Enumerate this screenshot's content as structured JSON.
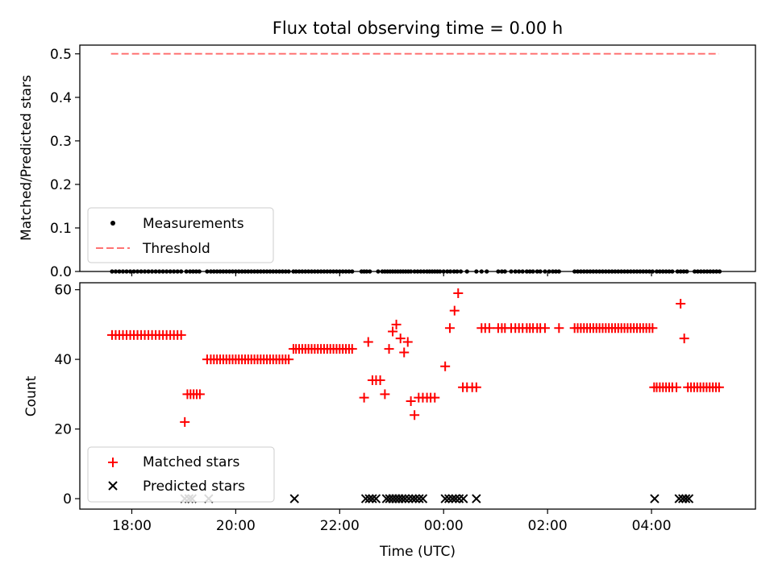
{
  "chart_data": [
    {
      "type": "scatter",
      "title": "Flux total observing time = 0.00 h",
      "ylabel": "Matched/Predicted stars",
      "xlabel": "",
      "xlim": [
        17.0,
        30.0
      ],
      "ylim": [
        0.0,
        0.52
      ],
      "yticks": [
        0.0,
        0.1,
        0.2,
        0.3,
        0.4,
        0.5
      ],
      "ytick_labels": [
        "0.0",
        "0.1",
        "0.2",
        "0.3",
        "0.4",
        "0.5"
      ],
      "series": [
        {
          "name": "Measurements",
          "marker": "dot",
          "color": "#000000",
          "x": [
            17.62,
            17.69,
            17.76,
            17.83,
            17.9,
            17.97,
            18.04,
            18.11,
            18.18,
            18.25,
            18.32,
            18.39,
            18.46,
            18.53,
            18.6,
            18.67,
            18.74,
            18.81,
            18.88,
            18.95,
            19.05,
            19.12,
            19.18,
            19.24,
            19.3,
            19.45,
            19.52,
            19.58,
            19.64,
            19.7,
            19.76,
            19.82,
            19.88,
            19.94,
            20.0,
            20.06,
            20.12,
            20.18,
            20.24,
            20.3,
            20.36,
            20.42,
            20.48,
            20.54,
            20.6,
            20.66,
            20.72,
            20.78,
            20.84,
            20.9,
            20.96,
            21.02,
            21.11,
            21.16,
            21.22,
            21.28,
            21.34,
            21.4,
            21.46,
            21.52,
            21.58,
            21.64,
            21.7,
            21.76,
            21.82,
            21.88,
            21.94,
            22.0,
            22.06,
            22.12,
            22.18,
            22.24,
            22.42,
            22.47,
            22.52,
            22.58,
            22.74,
            22.82,
            22.87,
            22.92,
            22.97,
            23.02,
            23.07,
            23.12,
            23.17,
            23.22,
            23.27,
            23.32,
            23.37,
            23.44,
            23.5,
            23.56,
            23.62,
            23.68,
            23.73,
            23.78,
            23.83,
            23.88,
            23.93,
            24.0,
            24.07,
            24.13,
            24.2,
            24.26,
            24.33,
            24.45,
            24.63,
            24.73,
            24.83,
            25.05,
            25.12,
            25.18,
            25.3,
            25.38,
            25.45,
            25.52,
            25.6,
            25.66,
            25.72,
            25.8,
            25.86,
            25.95,
            26.03,
            26.1,
            26.16,
            26.22,
            26.52,
            26.58,
            26.64,
            26.7,
            26.76,
            26.82,
            26.88,
            26.94,
            27.0,
            27.06,
            27.12,
            27.18,
            27.24,
            27.3,
            27.36,
            27.42,
            27.48,
            27.54,
            27.6,
            27.66,
            27.72,
            27.78,
            27.84,
            27.9,
            27.96,
            28.02,
            28.1,
            28.16,
            28.22,
            28.28,
            28.34,
            28.4,
            28.5,
            28.56,
            28.62,
            28.68,
            28.83,
            28.89,
            28.95,
            29.01,
            29.07,
            29.13,
            29.19,
            29.25,
            29.31
          ],
          "y": 0.0
        },
        {
          "name": "Threshold",
          "style": "dashed",
          "color": "#ff0000",
          "alpha": 0.55,
          "x": [
            17.6,
            29.3
          ],
          "y": [
            0.5,
            0.5
          ]
        }
      ],
      "legend": {
        "location": "lower-left",
        "entries": [
          "Measurements",
          "Threshold"
        ]
      }
    },
    {
      "type": "scatter",
      "title": "",
      "ylabel": "Count",
      "xlabel": "Time (UTC)",
      "xlim": [
        17.0,
        30.0
      ],
      "ylim": [
        -3.0,
        62.0
      ],
      "yticks": [
        0,
        20,
        40,
        60
      ],
      "ytick_labels": [
        "0",
        "20",
        "40",
        "60"
      ],
      "xticks": [
        18,
        20,
        22,
        24,
        26,
        28
      ],
      "xtick_labels": [
        "18:00",
        "20:00",
        "22:00",
        "00:00",
        "02:00",
        "04:00"
      ],
      "series": [
        {
          "name": "Matched stars",
          "marker": "plus",
          "color": "#ff0000",
          "points": [
            [
              17.62,
              47
            ],
            [
              17.69,
              47
            ],
            [
              17.76,
              47
            ],
            [
              17.83,
              47
            ],
            [
              17.9,
              47
            ],
            [
              17.97,
              47
            ],
            [
              18.04,
              47
            ],
            [
              18.11,
              47
            ],
            [
              18.18,
              47
            ],
            [
              18.25,
              47
            ],
            [
              18.32,
              47
            ],
            [
              18.39,
              47
            ],
            [
              18.46,
              47
            ],
            [
              18.53,
              47
            ],
            [
              18.6,
              47
            ],
            [
              18.67,
              47
            ],
            [
              18.74,
              47
            ],
            [
              18.81,
              47
            ],
            [
              18.88,
              47
            ],
            [
              18.95,
              47
            ],
            [
              19.02,
              22
            ],
            [
              19.07,
              30
            ],
            [
              19.13,
              30
            ],
            [
              19.19,
              30
            ],
            [
              19.25,
              30
            ],
            [
              19.31,
              30
            ],
            [
              19.45,
              40
            ],
            [
              19.52,
              40
            ],
            [
              19.58,
              40
            ],
            [
              19.64,
              40
            ],
            [
              19.7,
              40
            ],
            [
              19.76,
              40
            ],
            [
              19.82,
              40
            ],
            [
              19.88,
              40
            ],
            [
              19.94,
              40
            ],
            [
              20.0,
              40
            ],
            [
              20.06,
              40
            ],
            [
              20.12,
              40
            ],
            [
              20.18,
              40
            ],
            [
              20.24,
              40
            ],
            [
              20.3,
              40
            ],
            [
              20.36,
              40
            ],
            [
              20.42,
              40
            ],
            [
              20.48,
              40
            ],
            [
              20.54,
              40
            ],
            [
              20.6,
              40
            ],
            [
              20.66,
              40
            ],
            [
              20.72,
              40
            ],
            [
              20.78,
              40
            ],
            [
              20.84,
              40
            ],
            [
              20.9,
              40
            ],
            [
              20.96,
              40
            ],
            [
              21.02,
              40
            ],
            [
              21.11,
              43
            ],
            [
              21.16,
              43
            ],
            [
              21.22,
              43
            ],
            [
              21.28,
              43
            ],
            [
              21.34,
              43
            ],
            [
              21.4,
              43
            ],
            [
              21.46,
              43
            ],
            [
              21.52,
              43
            ],
            [
              21.58,
              43
            ],
            [
              21.64,
              43
            ],
            [
              21.7,
              43
            ],
            [
              21.76,
              43
            ],
            [
              21.82,
              43
            ],
            [
              21.88,
              43
            ],
            [
              21.94,
              43
            ],
            [
              22.0,
              43
            ],
            [
              22.06,
              43
            ],
            [
              22.12,
              43
            ],
            [
              22.18,
              43
            ],
            [
              22.24,
              43
            ],
            [
              22.47,
              29
            ],
            [
              22.55,
              45
            ],
            [
              22.63,
              34
            ],
            [
              22.7,
              34
            ],
            [
              22.78,
              34
            ],
            [
              22.87,
              30
            ],
            [
              22.95,
              43
            ],
            [
              23.02,
              48
            ],
            [
              23.09,
              50
            ],
            [
              23.17,
              46
            ],
            [
              23.24,
              42
            ],
            [
              23.31,
              45
            ],
            [
              23.37,
              28
            ],
            [
              23.44,
              24
            ],
            [
              23.52,
              29
            ],
            [
              23.6,
              29
            ],
            [
              23.68,
              29
            ],
            [
              23.75,
              29
            ],
            [
              23.83,
              29
            ],
            [
              24.03,
              38
            ],
            [
              24.12,
              49
            ],
            [
              24.21,
              54
            ],
            [
              24.28,
              59
            ],
            [
              24.37,
              32
            ],
            [
              24.45,
              32
            ],
            [
              24.55,
              32
            ],
            [
              24.63,
              32
            ],
            [
              24.73,
              49
            ],
            [
              24.8,
              49
            ],
            [
              24.88,
              49
            ],
            [
              25.05,
              49
            ],
            [
              25.12,
              49
            ],
            [
              25.18,
              49
            ],
            [
              25.3,
              49
            ],
            [
              25.38,
              49
            ],
            [
              25.45,
              49
            ],
            [
              25.52,
              49
            ],
            [
              25.6,
              49
            ],
            [
              25.66,
              49
            ],
            [
              25.72,
              49
            ],
            [
              25.8,
              49
            ],
            [
              25.86,
              49
            ],
            [
              25.95,
              49
            ],
            [
              26.22,
              49
            ],
            [
              26.52,
              49
            ],
            [
              26.58,
              49
            ],
            [
              26.64,
              49
            ],
            [
              26.7,
              49
            ],
            [
              26.76,
              49
            ],
            [
              26.82,
              49
            ],
            [
              26.88,
              49
            ],
            [
              26.94,
              49
            ],
            [
              27.0,
              49
            ],
            [
              27.06,
              49
            ],
            [
              27.12,
              49
            ],
            [
              27.18,
              49
            ],
            [
              27.24,
              49
            ],
            [
              27.3,
              49
            ],
            [
              27.36,
              49
            ],
            [
              27.42,
              49
            ],
            [
              27.48,
              49
            ],
            [
              27.54,
              49
            ],
            [
              27.6,
              49
            ],
            [
              27.66,
              49
            ],
            [
              27.72,
              49
            ],
            [
              27.78,
              49
            ],
            [
              27.84,
              49
            ],
            [
              27.9,
              49
            ],
            [
              27.96,
              49
            ],
            [
              28.02,
              49
            ],
            [
              28.05,
              32
            ],
            [
              28.1,
              32
            ],
            [
              28.16,
              32
            ],
            [
              28.22,
              32
            ],
            [
              28.28,
              32
            ],
            [
              28.34,
              32
            ],
            [
              28.4,
              32
            ],
            [
              28.48,
              32
            ],
            [
              28.56,
              56
            ],
            [
              28.63,
              46
            ],
            [
              28.7,
              32
            ],
            [
              28.76,
              32
            ],
            [
              28.82,
              32
            ],
            [
              28.88,
              32
            ],
            [
              28.94,
              32
            ],
            [
              29.0,
              32
            ],
            [
              29.06,
              32
            ],
            [
              29.12,
              32
            ],
            [
              29.18,
              32
            ],
            [
              29.24,
              32
            ],
            [
              29.3,
              32
            ]
          ]
        },
        {
          "name": "Predicted stars",
          "marker": "x",
          "color": "#000000",
          "points": [
            [
              19.02,
              0
            ],
            [
              19.1,
              0
            ],
            [
              19.16,
              0
            ],
            [
              19.48,
              0
            ],
            [
              21.13,
              0
            ],
            [
              22.5,
              0
            ],
            [
              22.57,
              0
            ],
            [
              22.63,
              0
            ],
            [
              22.7,
              0
            ],
            [
              22.9,
              0
            ],
            [
              22.96,
              0
            ],
            [
              23.02,
              0
            ],
            [
              23.08,
              0
            ],
            [
              23.14,
              0
            ],
            [
              23.2,
              0
            ],
            [
              23.26,
              0
            ],
            [
              23.33,
              0
            ],
            [
              23.4,
              0
            ],
            [
              23.46,
              0
            ],
            [
              23.53,
              0
            ],
            [
              23.6,
              0
            ],
            [
              24.03,
              0
            ],
            [
              24.1,
              0
            ],
            [
              24.17,
              0
            ],
            [
              24.23,
              0
            ],
            [
              24.3,
              0
            ],
            [
              24.38,
              0
            ],
            [
              24.63,
              0
            ],
            [
              28.06,
              0
            ],
            [
              28.53,
              0
            ],
            [
              28.6,
              0
            ],
            [
              28.66,
              0
            ],
            [
              28.72,
              0
            ]
          ]
        }
      ],
      "legend": {
        "location": "lower-left",
        "entries": [
          "Matched stars",
          "Predicted stars"
        ]
      }
    }
  ]
}
